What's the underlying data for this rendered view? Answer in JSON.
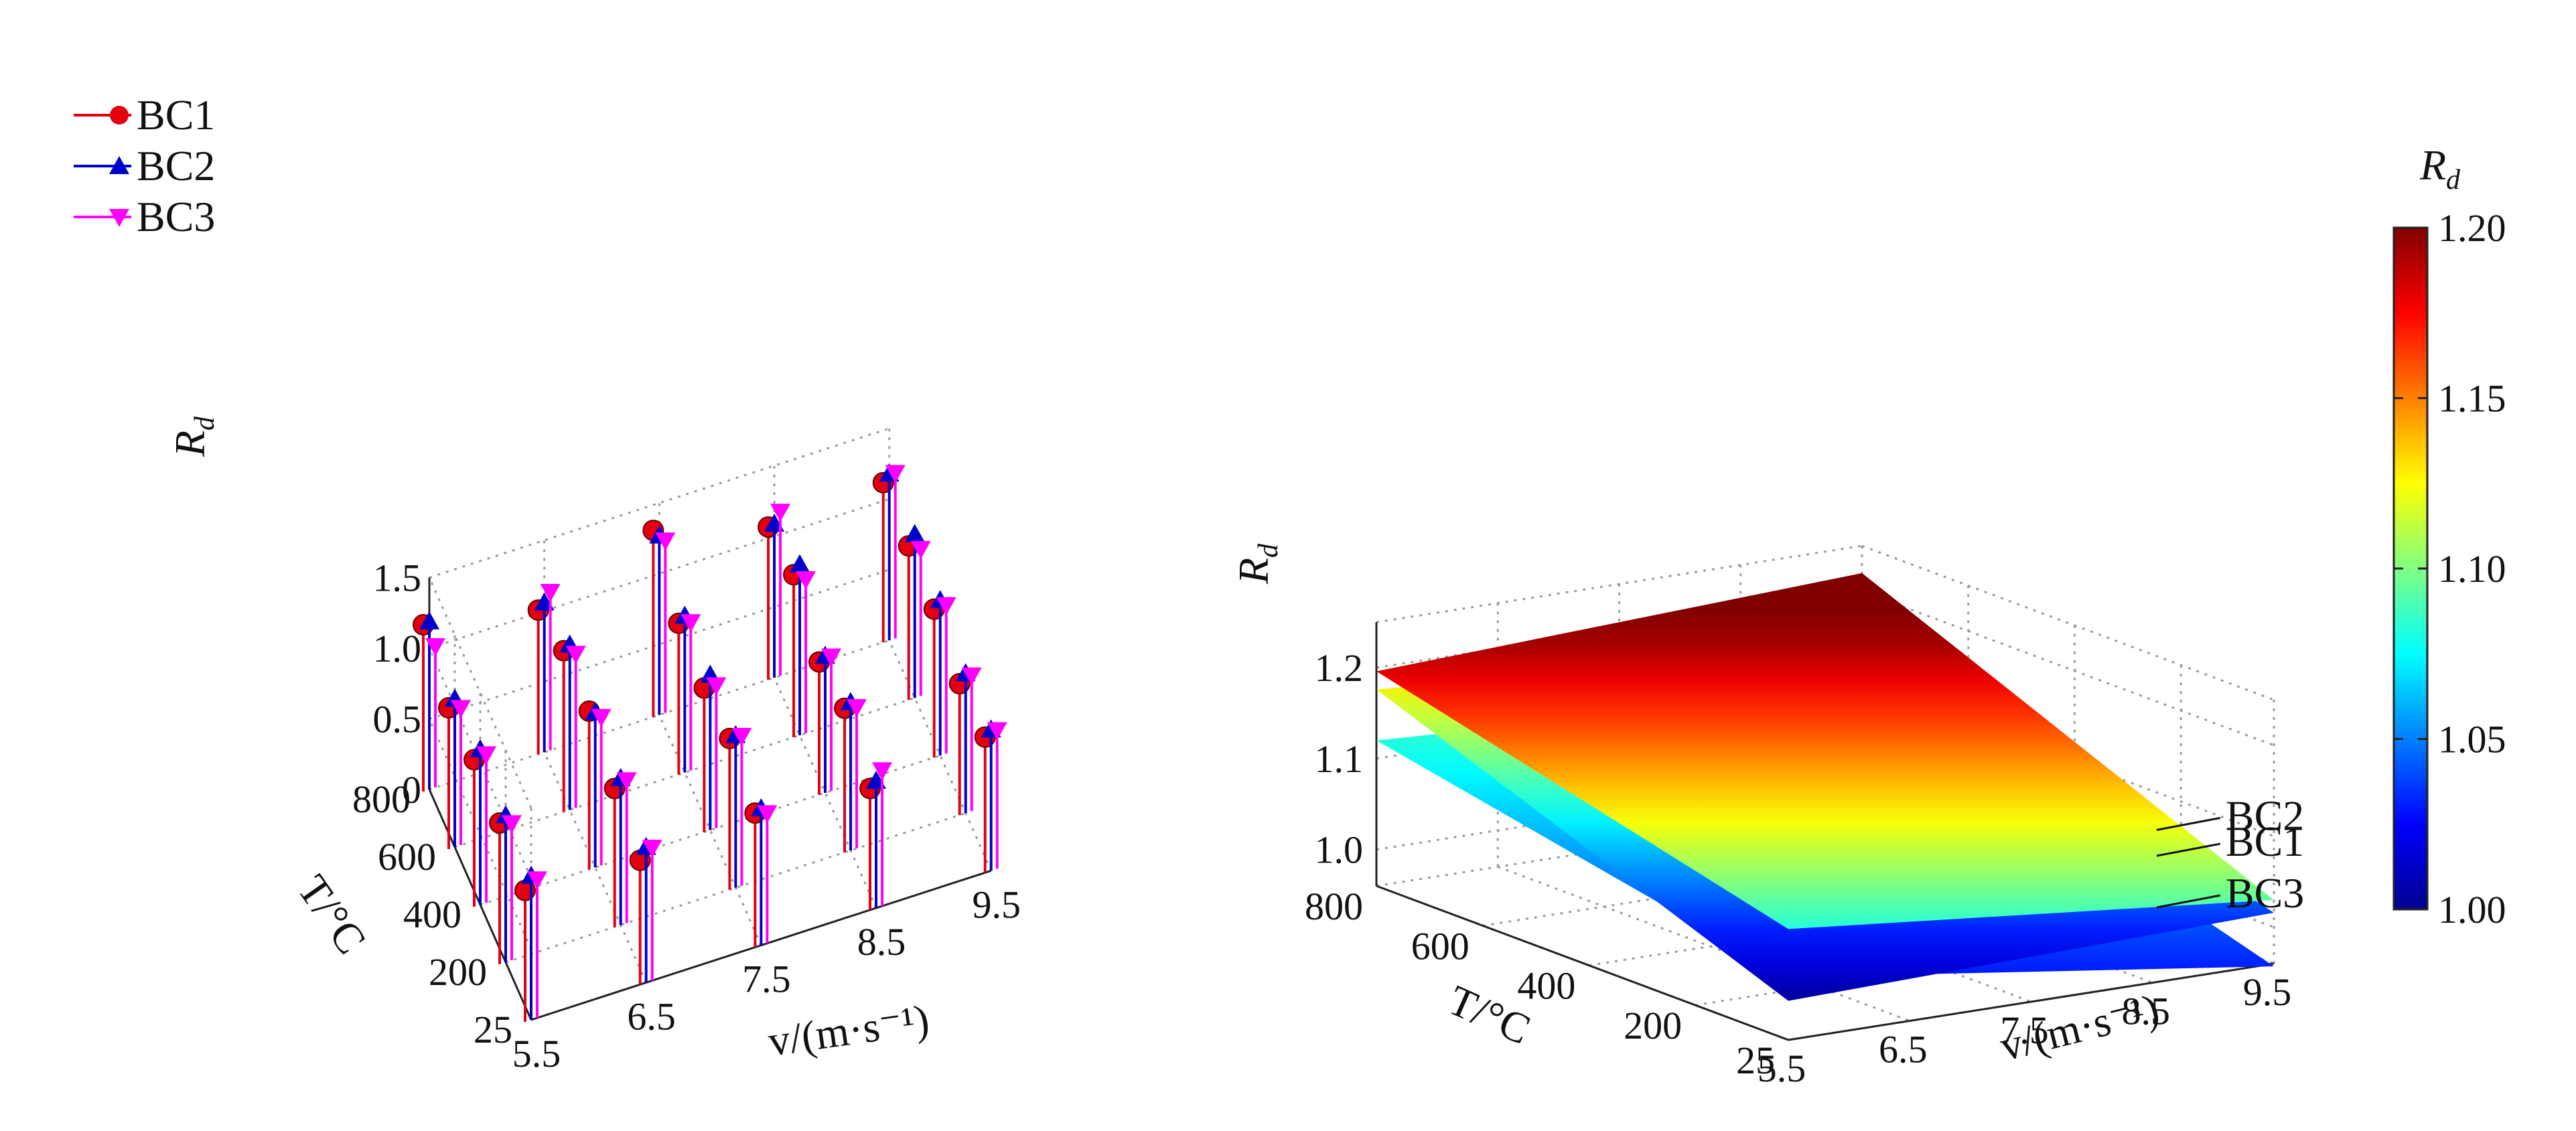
{
  "chart_data": [
    {
      "type": "scatter",
      "subtype": "3d-stem",
      "legend_position": "top-left",
      "z_label": "R_d",
      "y_label": "T/°C",
      "x_label": "v/(m·s⁻¹)",
      "x_ticks": [
        "5.5",
        "6.5",
        "7.5",
        "8.5",
        "9.5"
      ],
      "y_ticks": [
        "25",
        "200",
        "400",
        "600",
        "800"
      ],
      "z_ticks": [
        "0",
        "0.5",
        "1.0",
        "1.5"
      ],
      "zlim": [
        0,
        1.5
      ],
      "grid": true,
      "v_values": [
        5.5,
        6.5,
        7.5,
        8.5,
        9.5
      ],
      "T_values": [
        25,
        200,
        400,
        600,
        800
      ],
      "series": [
        {
          "name": "BC1",
          "color": "#e3000f",
          "marker": "circle",
          "values": [
            [
              0.93,
              0.88,
              0.95,
              0.86,
              0.96
            ],
            [
              1.0,
              0.98,
              1.07,
              1.02,
              0.93
            ],
            [
              1.04,
              1.12,
              1.02,
              0.94,
              1.05
            ],
            [
              1.0,
              1.14,
              1.07,
              1.15,
              1.09
            ],
            [
              1.18,
              1.02,
              1.32,
              1.08,
              1.13
            ]
          ]
        },
        {
          "name": "BC2",
          "color": "#0000cc",
          "marker": "triangle-up",
          "values": [
            [
              1.02,
              0.96,
              0.97,
              0.9,
              1.0
            ],
            [
              1.04,
              1.04,
              1.08,
              1.05,
              0.99
            ],
            [
              1.1,
              1.1,
              1.1,
              0.97,
              1.1
            ],
            [
              1.05,
              1.17,
              1.11,
              1.21,
              1.16
            ],
            [
              1.19,
              1.06,
              1.27,
              1.09,
              1.18
            ]
          ]
        },
        {
          "name": "BC3",
          "color": "#ff00ff",
          "marker": "triangle-down",
          "values": [
            [
              0.98,
              0.94,
              0.92,
              0.96,
              0.98
            ],
            [
              0.97,
              1.01,
              1.06,
              1.0,
              0.96
            ],
            [
              1.05,
              1.05,
              1.01,
              0.95,
              1.05
            ],
            [
              0.97,
              1.09,
              1.05,
              1.09,
              1.04
            ],
            [
              1.0,
              1.12,
              1.22,
              1.16,
              1.17
            ]
          ]
        }
      ]
    },
    {
      "type": "surface",
      "subtype": "3d-plane",
      "z_label": "R_d",
      "y_label": "T/°C",
      "x_label": "v/(m·s⁻¹)",
      "x_ticks": [
        "5.5",
        "6.5",
        "7.5",
        "8.5",
        "9.5"
      ],
      "y_ticks": [
        "25",
        "200",
        "400",
        "600",
        "800"
      ],
      "z_ticks": [
        "1.0",
        "1.1",
        "1.2"
      ],
      "xlim": [
        5.5,
        9.5
      ],
      "ylim": [
        25,
        800
      ],
      "zlim": [
        0.96,
        1.25
      ],
      "grid": true,
      "colormap": "jet",
      "series": [
        {
          "name": "BC2",
          "corners": {
            "v5.5_T800": 1.196,
            "v9.5_T800": 1.22,
            "v5.5_T25": 1.082,
            "v9.5_T25": 1.03
          }
        },
        {
          "name": "BC1",
          "corners": {
            "v5.5_T800": 1.176,
            "v9.5_T800": 1.142,
            "v5.5_T25": 1.003,
            "v9.5_T25": 1.016
          }
        },
        {
          "name": "BC3",
          "corners": {
            "v5.5_T800": 1.12,
            "v9.5_T800": 1.093,
            "v5.5_T25": 1.029,
            "v9.5_T25": 0.957
          }
        }
      ],
      "colorbar": {
        "title": "R_d",
        "min": 1.0,
        "max": 1.2,
        "ticks": [
          "1.00",
          "1.05",
          "1.10",
          "1.15",
          "1.20"
        ]
      }
    }
  ]
}
